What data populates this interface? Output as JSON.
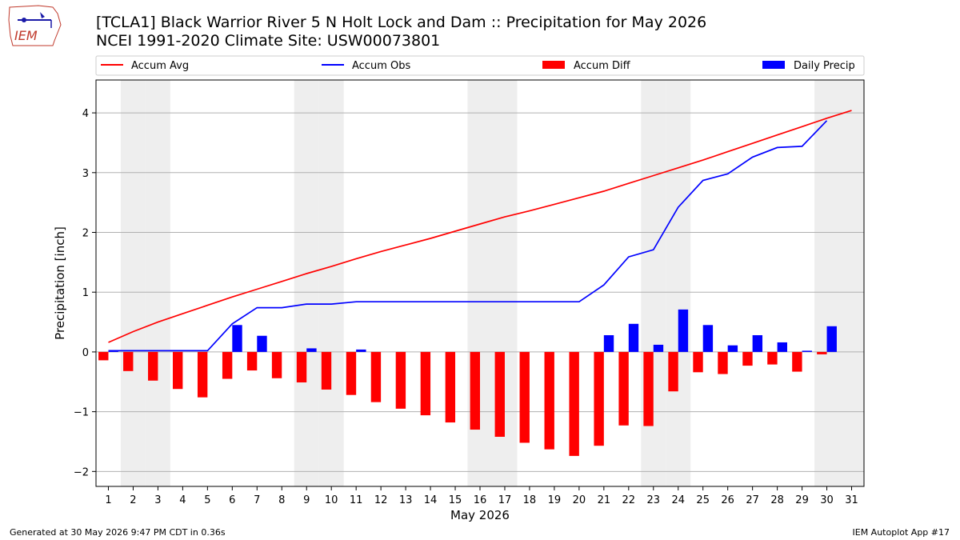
{
  "header": {
    "title_line1": "[TCLA1] Black Warrior River 5 N Holt Lock and Dam :: Precipitation for May 2026",
    "title_line2": "NCEI 1991-2020 Climate Site: USW00073801"
  },
  "logo": {
    "text": "IEM",
    "icon": "iem-logo-icon"
  },
  "footer": {
    "left": "Generated at 30 May 2026 9:47 PM CDT in 0.36s",
    "right": "IEM Autoplot App #17"
  },
  "colors": {
    "accum_avg": "#ff0000",
    "accum_obs": "#0000ff",
    "accum_diff": "#ff0000",
    "daily_precip": "#0000ff",
    "weekend_shade": "#eeeeee",
    "grid": "#b0b0b0"
  },
  "chart_data": {
    "type": "bar",
    "xlabel": "May 2026",
    "ylabel": "Precipitation [inch]",
    "ylim": [
      -2.25,
      4.55
    ],
    "xlim": [
      0.5,
      31.5
    ],
    "yticks": [
      -2,
      -1,
      0,
      1,
      2,
      3,
      4
    ],
    "ytick_labels": [
      "−2",
      "−1",
      "0",
      "1",
      "2",
      "3",
      "4"
    ],
    "x": [
      1,
      2,
      3,
      4,
      5,
      6,
      7,
      8,
      9,
      10,
      11,
      12,
      13,
      14,
      15,
      16,
      17,
      18,
      19,
      20,
      21,
      22,
      23,
      24,
      25,
      26,
      27,
      28,
      29,
      30,
      31
    ],
    "xtick_labels": [
      "1",
      "2",
      "3",
      "4",
      "5",
      "6",
      "7",
      "8",
      "9",
      "10",
      "11",
      "12",
      "13",
      "14",
      "15",
      "16",
      "17",
      "18",
      "19",
      "20",
      "21",
      "22",
      "23",
      "24",
      "25",
      "26",
      "27",
      "28",
      "29",
      "30",
      "31"
    ],
    "grid": "y",
    "legend_position": "top",
    "shaded_days": [
      2,
      3,
      9,
      10,
      16,
      17,
      23,
      24,
      30,
      31
    ],
    "series": [
      {
        "name": "Accum Avg",
        "kind": "line",
        "values": [
          0.16,
          0.34,
          0.5,
          0.64,
          0.78,
          0.92,
          1.05,
          1.18,
          1.31,
          1.43,
          1.56,
          1.68,
          1.79,
          1.9,
          2.02,
          2.14,
          2.26,
          2.36,
          2.47,
          2.58,
          2.69,
          2.82,
          2.95,
          3.08,
          3.21,
          3.35,
          3.49,
          3.63,
          3.77,
          3.91,
          4.04
        ]
      },
      {
        "name": "Accum Obs",
        "kind": "line",
        "values": [
          0.02,
          0.02,
          0.02,
          0.02,
          0.02,
          0.47,
          0.74,
          0.74,
          0.8,
          0.8,
          0.84,
          0.84,
          0.84,
          0.84,
          0.84,
          0.84,
          0.84,
          0.84,
          0.84,
          0.84,
          1.12,
          1.59,
          1.71,
          2.42,
          2.87,
          2.98,
          3.26,
          3.42,
          3.44,
          3.87,
          null
        ]
      },
      {
        "name": "Accum Diff",
        "kind": "bar",
        "values": [
          -0.14,
          -0.32,
          -0.48,
          -0.62,
          -0.76,
          -0.45,
          -0.31,
          -0.44,
          -0.51,
          -0.63,
          -0.72,
          -0.84,
          -0.95,
          -1.06,
          -1.18,
          -1.3,
          -1.42,
          -1.52,
          -1.63,
          -1.74,
          -1.57,
          -1.23,
          -1.24,
          -0.66,
          -0.34,
          -0.37,
          -0.23,
          -0.21,
          -0.33,
          -0.04,
          null
        ]
      },
      {
        "name": "Daily Precip",
        "kind": "bar",
        "values": [
          0.02,
          0.0,
          0.0,
          0.0,
          0.0,
          0.45,
          0.27,
          0.0,
          0.06,
          0.0,
          0.04,
          0.0,
          0.0,
          0.0,
          0.0,
          0.0,
          0.0,
          0.0,
          0.0,
          0.0,
          0.28,
          0.47,
          0.12,
          0.71,
          0.45,
          0.11,
          0.28,
          0.16,
          0.02,
          0.43,
          null
        ]
      }
    ]
  }
}
